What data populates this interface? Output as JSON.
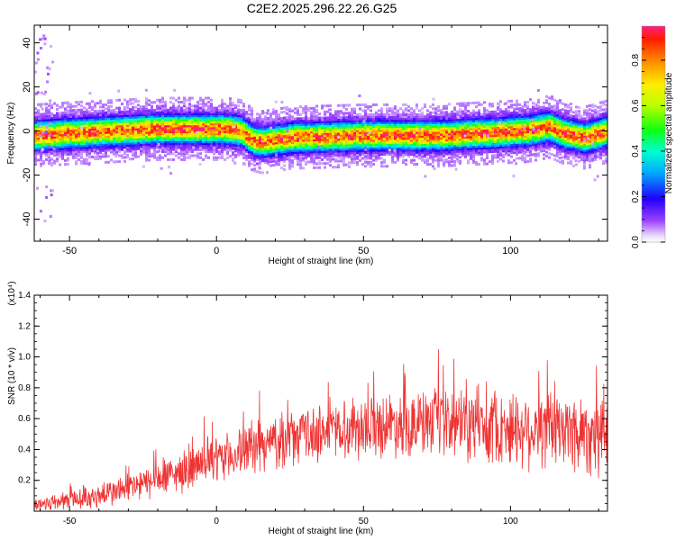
{
  "title": "C2E2.2025.296.22.26.G25",
  "chart_data": [
    {
      "type": "heatmap",
      "xlabel": "Height of straight line (km)",
      "ylabel": "Frequency (Hz)",
      "xlim": [
        -62,
        133
      ],
      "ylim": [
        -50,
        48
      ],
      "xticks": [
        -50,
        0,
        50,
        100
      ],
      "yticks": [
        -40,
        -20,
        0,
        20,
        40
      ],
      "ridge": [
        {
          "x": -62,
          "y": -2
        },
        {
          "x": -50,
          "y": -1
        },
        {
          "x": -35,
          "y": 0
        },
        {
          "x": -20,
          "y": 1
        },
        {
          "x": -5,
          "y": 1
        },
        {
          "x": 3,
          "y": 1
        },
        {
          "x": 8,
          "y": 0
        },
        {
          "x": 12,
          "y": -4
        },
        {
          "x": 15,
          "y": -5
        },
        {
          "x": 25,
          "y": -3
        },
        {
          "x": 50,
          "y": -2
        },
        {
          "x": 75,
          "y": -2
        },
        {
          "x": 90,
          "y": -1
        },
        {
          "x": 105,
          "y": 0
        },
        {
          "x": 113,
          "y": 2
        },
        {
          "x": 118,
          "y": -1
        },
        {
          "x": 125,
          "y": -3
        },
        {
          "x": 133,
          "y": 0
        }
      ],
      "colorbar": {
        "label": "Normalized spectral amplitude",
        "range": [
          0.0,
          0.95
        ],
        "ticks": [
          "0.0",
          "0.2",
          "0.4",
          "0.6",
          "0.8"
        ],
        "tick_values": [
          0.0,
          0.2,
          0.4,
          0.6,
          0.8
        ]
      }
    },
    {
      "type": "line",
      "xlabel": "Height of straight line (km)",
      "ylabel": "SNR (10 * v/v)",
      "multiplier_label": "(x10⁴)",
      "xlim": [
        -62,
        133
      ],
      "ylim": [
        0.0,
        1.4
      ],
      "xticks": [
        -50,
        0,
        50,
        100
      ],
      "yticks": [
        "0.2",
        "0.4",
        "0.6",
        "0.8",
        "1.0",
        "1.2",
        "1.4"
      ],
      "ytick_values": [
        0.2,
        0.4,
        0.6,
        0.8,
        1.0,
        1.2,
        1.4
      ],
      "line_color": "#ee3333",
      "trend": [
        {
          "x": -62,
          "y": 0.04
        },
        {
          "x": -40,
          "y": 0.1
        },
        {
          "x": -20,
          "y": 0.2
        },
        {
          "x": 0,
          "y": 0.33
        },
        {
          "x": 20,
          "y": 0.45
        },
        {
          "x": 40,
          "y": 0.53
        },
        {
          "x": 60,
          "y": 0.57
        },
        {
          "x": 80,
          "y": 0.56
        },
        {
          "x": 100,
          "y": 0.54
        },
        {
          "x": 120,
          "y": 0.52
        },
        {
          "x": 133,
          "y": 0.5
        }
      ],
      "spread": [
        {
          "x": -62,
          "y": 0.05
        },
        {
          "x": -20,
          "y": 0.12
        },
        {
          "x": 20,
          "y": 0.18
        },
        {
          "x": 60,
          "y": 0.22
        },
        {
          "x": 100,
          "y": 0.26
        },
        {
          "x": 133,
          "y": 0.3
        }
      ]
    }
  ]
}
